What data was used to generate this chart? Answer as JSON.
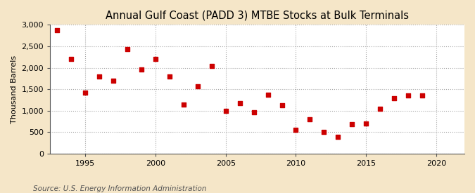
{
  "title": "Annual Gulf Coast (PADD 3) MTBE Stocks at Bulk Terminals",
  "ylabel": "Thousand Barrels",
  "source": "Source: U.S. Energy Information Administration",
  "fig_background_color": "#f5e6c8",
  "plot_background_color": "#ffffff",
  "marker_color": "#cc0000",
  "marker": "s",
  "marker_size": 4,
  "years": [
    1993,
    1994,
    1995,
    1996,
    1997,
    1998,
    1999,
    2000,
    2001,
    2002,
    2003,
    2004,
    2005,
    2006,
    2007,
    2008,
    2009,
    2010,
    2011,
    2012,
    2013,
    2014,
    2015,
    2016,
    2017,
    2018,
    2019
  ],
  "values": [
    2870,
    2200,
    1420,
    1800,
    1700,
    2430,
    1960,
    2210,
    1800,
    1140,
    1560,
    2040,
    1000,
    1170,
    960,
    1370,
    1120,
    550,
    800,
    510,
    390,
    690,
    700,
    1040,
    1290,
    1350,
    1350
  ],
  "xlim": [
    1992.5,
    2022
  ],
  "ylim": [
    0,
    3000
  ],
  "yticks": [
    0,
    500,
    1000,
    1500,
    2000,
    2500,
    3000
  ],
  "xticks": [
    1995,
    2000,
    2005,
    2010,
    2015,
    2020
  ],
  "title_fontsize": 10.5,
  "label_fontsize": 8,
  "tick_fontsize": 8,
  "source_fontsize": 7.5
}
